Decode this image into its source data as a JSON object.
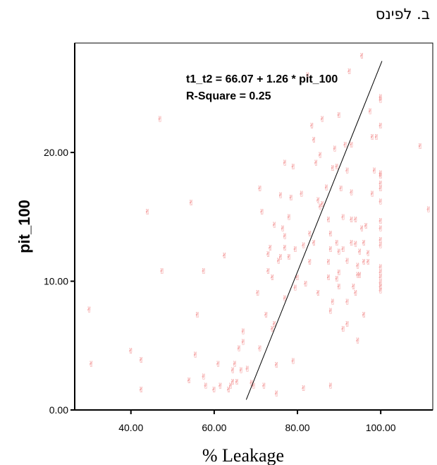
{
  "heading": "ב. לפינס",
  "chart_data": {
    "type": "scatter",
    "xlabel": "% Leakage",
    "ylabel": "pit_100",
    "xlim": [
      26.5,
      112.5
    ],
    "ylim": [
      0,
      28.5
    ],
    "x_ticks": [
      40,
      60,
      80,
      100
    ],
    "x_tick_labels": [
      "40.00",
      "60.00",
      "80.00",
      "100.00"
    ],
    "y_ticks": [
      0,
      10,
      20
    ],
    "y_tick_labels": [
      "0.00",
      "10.00",
      "20.00"
    ],
    "grid": false,
    "legend": "none",
    "marker_color": "#f08080",
    "marker_glyph": "✌",
    "annotations": [
      "t1_t2 = 66.07 + 1.26 * pit_100",
      "R-Square = 0.25"
    ],
    "fit_line": {
      "x": [
        67.7,
        100.3
      ],
      "y": [
        0.8,
        27.1
      ]
    },
    "points": [
      [
        30,
        7.8
      ],
      [
        30.5,
        3.6
      ],
      [
        40,
        4.6
      ],
      [
        42.5,
        3.9
      ],
      [
        42.5,
        1.6
      ],
      [
        44,
        15.4
      ],
      [
        47,
        22.6
      ],
      [
        47.5,
        10.8
      ],
      [
        54,
        2.3
      ],
      [
        54.5,
        16.1
      ],
      [
        55.5,
        4.3
      ],
      [
        56,
        7.4
      ],
      [
        57.5,
        10.8
      ],
      [
        57.5,
        2.6
      ],
      [
        58,
        1.9
      ],
      [
        60,
        1.6
      ],
      [
        61,
        3.6
      ],
      [
        61.5,
        1.9
      ],
      [
        62.5,
        12
      ],
      [
        63.5,
        1.6
      ],
      [
        64,
        1.9
      ],
      [
        64.5,
        3.1
      ],
      [
        64.5,
        2.2
      ],
      [
        65,
        3.6
      ],
      [
        65.5,
        2.2
      ],
      [
        66,
        4.8
      ],
      [
        66.5,
        3.1
      ],
      [
        67,
        6.1
      ],
      [
        67,
        5.3
      ],
      [
        68,
        3.2
      ],
      [
        69,
        2.1
      ],
      [
        69.5,
        1.9
      ],
      [
        70.5,
        9.1
      ],
      [
        71,
        4.8
      ],
      [
        71,
        17.2
      ],
      [
        71.5,
        15.4
      ],
      [
        72,
        1.9
      ],
      [
        72.5,
        7.4
      ],
      [
        73,
        12.1
      ],
      [
        73,
        10.8
      ],
      [
        73.5,
        12.6
      ],
      [
        74,
        10.3
      ],
      [
        74,
        6.3
      ],
      [
        74.5,
        6.7
      ],
      [
        74.5,
        14.4
      ],
      [
        75,
        1.3
      ],
      [
        75,
        3.5
      ],
      [
        75.5,
        11.6
      ],
      [
        76,
        11.9
      ],
      [
        76,
        16.7
      ],
      [
        76.5,
        14.1
      ],
      [
        77,
        8.7
      ],
      [
        77,
        12.6
      ],
      [
        77,
        13.5
      ],
      [
        77,
        19.2
      ],
      [
        78,
        11.9
      ],
      [
        78,
        15.0
      ],
      [
        78.5,
        16.5
      ],
      [
        79.5,
        12.5
      ],
      [
        79,
        3.8
      ],
      [
        79,
        18.9
      ],
      [
        79.5,
        9.5
      ],
      [
        80,
        10.3
      ],
      [
        81,
        16.8
      ],
      [
        81.5,
        12.8
      ],
      [
        81.5,
        1.7
      ],
      [
        82,
        9.8
      ],
      [
        82.5,
        26.0
      ],
      [
        83,
        13.7
      ],
      [
        83,
        11.5
      ],
      [
        83.5,
        22.1
      ],
      [
        84,
        21.0
      ],
      [
        84,
        13.0
      ],
      [
        84.5,
        19.2
      ],
      [
        85,
        16.3
      ],
      [
        85,
        9.1
      ],
      [
        85.5,
        15.8
      ],
      [
        85.5,
        19.8
      ],
      [
        86,
        22.6
      ],
      [
        86,
        16.0
      ],
      [
        87,
        17.3
      ],
      [
        87.5,
        11.5
      ],
      [
        87.5,
        10.3
      ],
      [
        87.5,
        14.8
      ],
      [
        88,
        12.5
      ],
      [
        88,
        1.9
      ],
      [
        88,
        7.7
      ],
      [
        88.5,
        8.4
      ],
      [
        88,
        13.7
      ],
      [
        88.5,
        18.8
      ],
      [
        89,
        20.3
      ],
      [
        89.5,
        13.0
      ],
      [
        89.5,
        10.2
      ],
      [
        89.5,
        18.9
      ],
      [
        90,
        12.3
      ],
      [
        90,
        10.7
      ],
      [
        90,
        9.6
      ],
      [
        90,
        22.9
      ],
      [
        90.5,
        17.2
      ],
      [
        91,
        6.3
      ],
      [
        91,
        15.0
      ],
      [
        91,
        12.5
      ],
      [
        91.5,
        20.6
      ],
      [
        92,
        11.6
      ],
      [
        92,
        6.7
      ],
      [
        92,
        8.4
      ],
      [
        92,
        18.6
      ],
      [
        92.5,
        26.3
      ],
      [
        93,
        14.8
      ],
      [
        93,
        13.0
      ],
      [
        93,
        16.9
      ],
      [
        93,
        20.6
      ],
      [
        93.5,
        9.6
      ],
      [
        94,
        12.9
      ],
      [
        94,
        9.1
      ],
      [
        94,
        14.8
      ],
      [
        94.5,
        10.5
      ],
      [
        94.5,
        11.2
      ],
      [
        94.5,
        5.4
      ],
      [
        95,
        12.3
      ],
      [
        95,
        10.5
      ],
      [
        95.5,
        14.1
      ],
      [
        95.5,
        27.5
      ],
      [
        96,
        7.4
      ],
      [
        96,
        11.5
      ],
      [
        96,
        13.0
      ],
      [
        96.5,
        14.3
      ],
      [
        97,
        11.5
      ],
      [
        97,
        12.2
      ],
      [
        97.5,
        23.2
      ],
      [
        98,
        16.8
      ],
      [
        98,
        21.2
      ],
      [
        98.5,
        18.6
      ],
      [
        99,
        21.2
      ],
      [
        100,
        24.3
      ],
      [
        100,
        24.1
      ],
      [
        100,
        22.1
      ],
      [
        100,
        18.4
      ],
      [
        100,
        18.2
      ],
      [
        100,
        17.2
      ],
      [
        100,
        14.7
      ],
      [
        100,
        14.1
      ],
      [
        100,
        13.2
      ],
      [
        100,
        12.8
      ],
      [
        100,
        11.1
      ],
      [
        100,
        10.7
      ],
      [
        100,
        10.3
      ],
      [
        100,
        9.9
      ],
      [
        100,
        9.6
      ],
      [
        100,
        9.3
      ],
      [
        100,
        16.2
      ],
      [
        100,
        17.6
      ],
      [
        109.5,
        20.5
      ],
      [
        111.5,
        15.6
      ]
    ]
  }
}
